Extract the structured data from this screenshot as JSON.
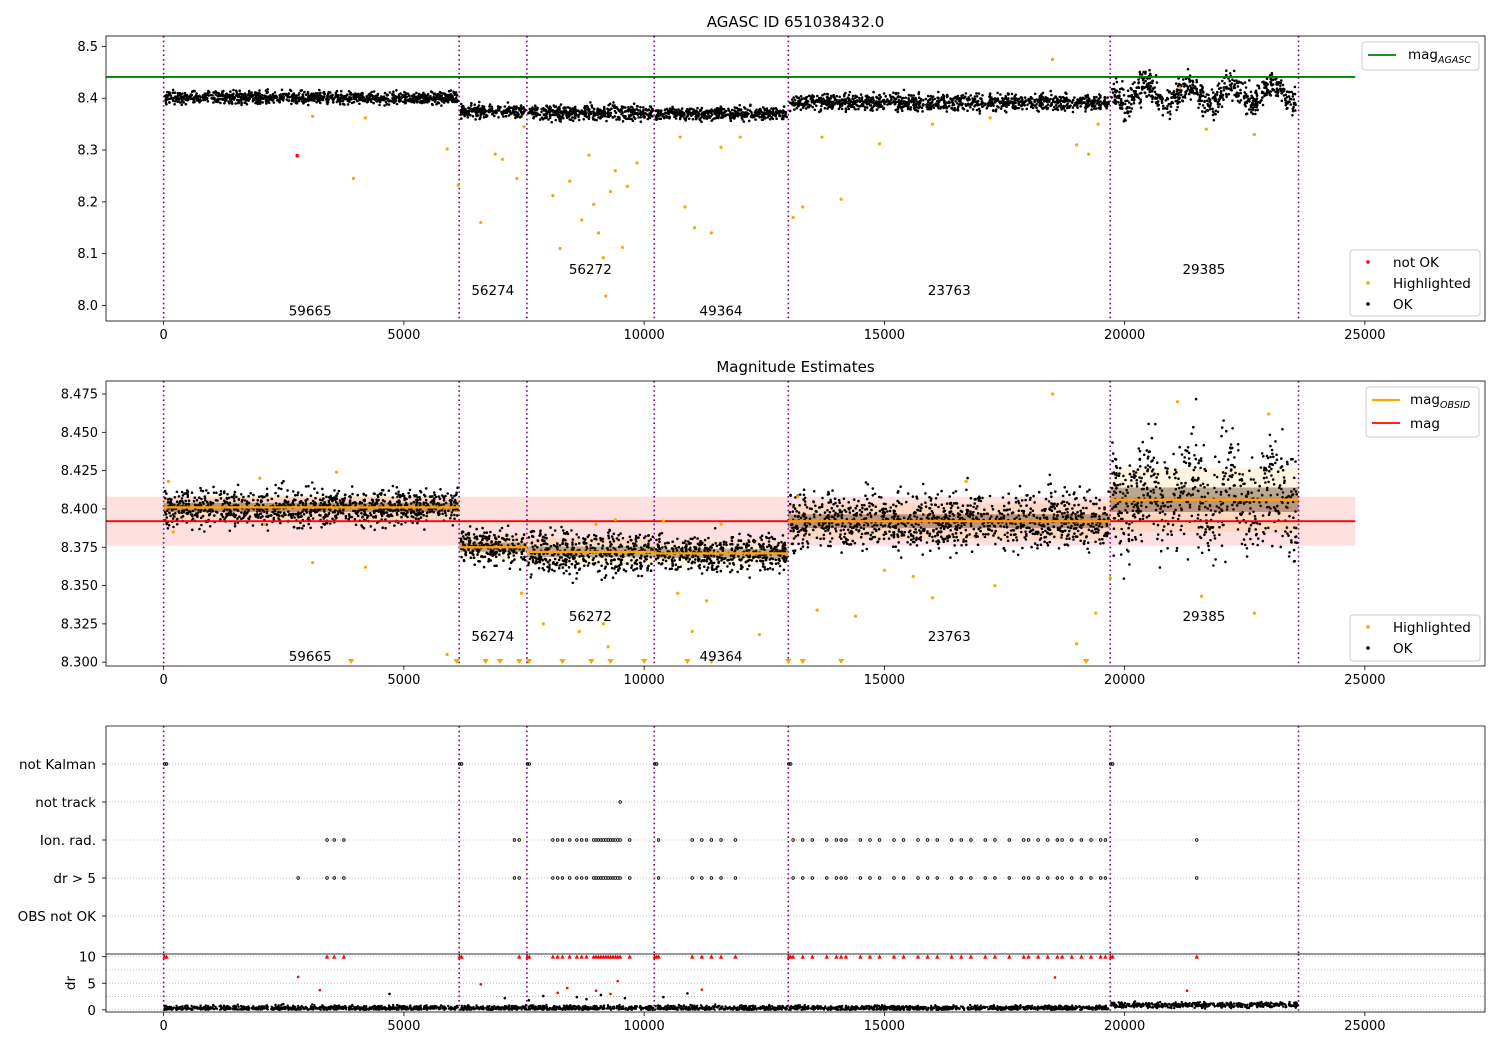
{
  "chart_data": [
    {
      "type": "scatter",
      "title": "AGASC ID 651038432.0",
      "xlabel": "",
      "ylabel": "",
      "xlim": [
        -1200,
        27500
      ],
      "ylim": [
        7.97,
        8.52
      ],
      "xticks": [
        0,
        5000,
        10000,
        15000,
        20000,
        25000
      ],
      "yticks": [
        8.0,
        8.1,
        8.2,
        8.3,
        8.4,
        8.5
      ],
      "ytick_labels": [
        "8.0",
        "8.1",
        "8.2",
        "8.3",
        "8.4",
        "8.5"
      ],
      "grid": false,
      "reference_lines": [
        {
          "name": "mag_AGASC",
          "label_main": "mag",
          "label_sub": "AGASC",
          "y": 8.441,
          "x_start": -1200,
          "x_end": 24800,
          "color": "#008000"
        }
      ],
      "obsid_boundaries": [
        0,
        6150,
        7560,
        10210,
        13000,
        19700,
        23620
      ],
      "segments": [
        {
          "obsid": "59665",
          "x_start": 0,
          "x_end": 6150,
          "level": 8.401,
          "spread": 0.006,
          "label_x": 3050,
          "label_y": 7.99
        },
        {
          "obsid": "56274",
          "x_start": 6150,
          "x_end": 7560,
          "level": 8.375,
          "spread": 0.006,
          "label_x": 6850,
          "label_y": 8.03
        },
        {
          "obsid": "56272",
          "x_start": 7560,
          "x_end": 10210,
          "level": 8.372,
          "spread": 0.007,
          "label_x": 8880,
          "label_y": 8.07
        },
        {
          "obsid": "49364",
          "x_start": 10210,
          "x_end": 13000,
          "level": 8.37,
          "spread": 0.006,
          "label_x": 11600,
          "label_y": 7.99
        },
        {
          "obsid": "23763",
          "x_start": 13000,
          "x_end": 19700,
          "level": 8.392,
          "spread": 0.008,
          "label_x": 16350,
          "label_y": 8.03
        },
        {
          "obsid": "29385",
          "x_start": 19700,
          "x_end": 23620,
          "level": 8.408,
          "spread": 0.014,
          "label_x": 21650,
          "label_y": 8.07
        }
      ],
      "not_ok_points": [
        {
          "x": 2780,
          "y": 8.289
        }
      ],
      "highlighted_points": [
        {
          "x": 3100,
          "y": 8.365
        },
        {
          "x": 3950,
          "y": 8.245
        },
        {
          "x": 4200,
          "y": 8.362
        },
        {
          "x": 5900,
          "y": 8.302
        },
        {
          "x": 6130,
          "y": 8.232
        },
        {
          "x": 6600,
          "y": 8.16
        },
        {
          "x": 6900,
          "y": 8.292
        },
        {
          "x": 7050,
          "y": 8.282
        },
        {
          "x": 7350,
          "y": 8.245
        },
        {
          "x": 7500,
          "y": 8.345
        },
        {
          "x": 8100,
          "y": 8.212
        },
        {
          "x": 8250,
          "y": 8.11
        },
        {
          "x": 8450,
          "y": 8.24
        },
        {
          "x": 8700,
          "y": 8.165
        },
        {
          "x": 8850,
          "y": 8.29
        },
        {
          "x": 8950,
          "y": 8.195
        },
        {
          "x": 9050,
          "y": 8.14
        },
        {
          "x": 9150,
          "y": 8.092
        },
        {
          "x": 9200,
          "y": 8.018
        },
        {
          "x": 9300,
          "y": 8.22
        },
        {
          "x": 9400,
          "y": 8.26
        },
        {
          "x": 9550,
          "y": 8.112
        },
        {
          "x": 9650,
          "y": 8.23
        },
        {
          "x": 9850,
          "y": 8.275
        },
        {
          "x": 10750,
          "y": 8.325
        },
        {
          "x": 10850,
          "y": 8.19
        },
        {
          "x": 11050,
          "y": 8.15
        },
        {
          "x": 11400,
          "y": 8.14
        },
        {
          "x": 11600,
          "y": 8.305
        },
        {
          "x": 12000,
          "y": 8.325
        },
        {
          "x": 13100,
          "y": 8.17
        },
        {
          "x": 13300,
          "y": 8.19
        },
        {
          "x": 13700,
          "y": 8.325
        },
        {
          "x": 14100,
          "y": 8.205
        },
        {
          "x": 14900,
          "y": 8.312
        },
        {
          "x": 16000,
          "y": 8.35
        },
        {
          "x": 17200,
          "y": 8.362
        },
        {
          "x": 18500,
          "y": 8.475
        },
        {
          "x": 19000,
          "y": 8.31
        },
        {
          "x": 19250,
          "y": 8.292
        },
        {
          "x": 19450,
          "y": 8.35
        },
        {
          "x": 21150,
          "y": 8.42
        },
        {
          "x": 21700,
          "y": 8.34
        },
        {
          "x": 22700,
          "y": 8.33
        }
      ],
      "legend": [
        {
          "label": "not OK",
          "color": "#ff0000",
          "marker": "dot"
        },
        {
          "label": "Highlighted",
          "color": "#ffa500",
          "marker": "dot"
        },
        {
          "label": "OK",
          "color": "#000000",
          "marker": "dot"
        }
      ],
      "legend_placement": "lower-right",
      "line_legend_placement": "upper-right"
    },
    {
      "type": "scatter",
      "title": "Magnitude Estimates",
      "xlabel": "",
      "ylabel": "",
      "xlim": [
        -1200,
        27500
      ],
      "ylim": [
        8.2975,
        8.4835
      ],
      "xticks": [
        0,
        5000,
        10000,
        15000,
        20000,
        25000
      ],
      "yticks": [
        8.3,
        8.325,
        8.35,
        8.375,
        8.4,
        8.425,
        8.45,
        8.475
      ],
      "ytick_labels": [
        "8.300",
        "8.325",
        "8.350",
        "8.375",
        "8.400",
        "8.425",
        "8.450",
        "8.475"
      ],
      "grid": false,
      "mag": {
        "name": "mag",
        "y": 8.392,
        "band": [
          8.376,
          8.408
        ],
        "x_start": -1200,
        "x_end": 24800,
        "color": "#ff0000"
      },
      "mag_obsid": {
        "name": "mag_OBSID",
        "label_main": "mag",
        "label_sub": "OBSID",
        "color": "#ffa500",
        "values": [
          8.401,
          8.375,
          8.372,
          8.371,
          8.392,
          8.406
        ]
      },
      "obsid_boundaries": [
        0,
        6150,
        7560,
        10210,
        13000,
        19700,
        23620
      ],
      "segment_labels": [
        {
          "text": "59665",
          "x": 3050,
          "y": 8.304
        },
        {
          "text": "56274",
          "x": 6850,
          "y": 8.317
        },
        {
          "text": "56272",
          "x": 8880,
          "y": 8.33
        },
        {
          "text": "49364",
          "x": 11600,
          "y": 8.304
        },
        {
          "text": "23763",
          "x": 16350,
          "y": 8.317
        },
        {
          "text": "29385",
          "x": 21650,
          "y": 8.33
        }
      ],
      "highlighted_points": [
        {
          "x": 100,
          "y": 8.418
        },
        {
          "x": 200,
          "y": 8.385
        },
        {
          "x": 2000,
          "y": 8.42
        },
        {
          "x": 2100,
          "y": 8.39
        },
        {
          "x": 3100,
          "y": 8.365
        },
        {
          "x": 3600,
          "y": 8.424
        },
        {
          "x": 4200,
          "y": 8.362
        },
        {
          "x": 5900,
          "y": 8.305
        },
        {
          "x": 7450,
          "y": 8.345
        },
        {
          "x": 7900,
          "y": 8.325
        },
        {
          "x": 8650,
          "y": 8.32
        },
        {
          "x": 9000,
          "y": 8.39
        },
        {
          "x": 9150,
          "y": 8.325
        },
        {
          "x": 9250,
          "y": 8.31
        },
        {
          "x": 9400,
          "y": 8.393
        },
        {
          "x": 10400,
          "y": 8.392
        },
        {
          "x": 10700,
          "y": 8.345
        },
        {
          "x": 11000,
          "y": 8.32
        },
        {
          "x": 11300,
          "y": 8.34
        },
        {
          "x": 11600,
          "y": 8.39
        },
        {
          "x": 12400,
          "y": 8.318
        },
        {
          "x": 13200,
          "y": 8.408
        },
        {
          "x": 13600,
          "y": 8.334
        },
        {
          "x": 14400,
          "y": 8.33
        },
        {
          "x": 15000,
          "y": 8.36
        },
        {
          "x": 15600,
          "y": 8.356
        },
        {
          "x": 16000,
          "y": 8.342
        },
        {
          "x": 16700,
          "y": 8.418
        },
        {
          "x": 17300,
          "y": 8.35
        },
        {
          "x": 18500,
          "y": 8.475
        },
        {
          "x": 19000,
          "y": 8.312
        },
        {
          "x": 19400,
          "y": 8.332
        },
        {
          "x": 19700,
          "y": 8.355
        },
        {
          "x": 21100,
          "y": 8.47
        },
        {
          "x": 21600,
          "y": 8.343
        },
        {
          "x": 22700,
          "y": 8.332
        },
        {
          "x": 23000,
          "y": 8.462
        }
      ],
      "off_scale_markers": [
        3900,
        6100,
        6700,
        7000,
        7400,
        7600,
        8300,
        8900,
        9300,
        10000,
        10900,
        11400,
        13000,
        13300,
        14100,
        19200
      ],
      "legend": [
        {
          "label": "Highlighted",
          "color": "#ffa500",
          "marker": "dot"
        },
        {
          "label": "OK",
          "color": "#000000",
          "marker": "dot"
        }
      ],
      "legend_placement": "lower-right",
      "line_legend_placement": "upper-right"
    },
    {
      "type": "scatter",
      "title": "",
      "xlabel": "",
      "ylabel": "",
      "xlim": [
        -1200,
        27500
      ],
      "categories": [
        "not Kalman",
        "not track",
        "Ion. rad.",
        "dr > 5",
        "OBS not OK"
      ],
      "grid": "horizontal-dotted",
      "obsid_boundaries": [
        0,
        6150,
        7560,
        10210,
        13000,
        19700,
        23620
      ],
      "flags": {
        "not Kalman": [
          20,
          60,
          6160,
          6200,
          7570,
          7610,
          10220,
          10260,
          13010,
          13050,
          19710,
          19750
        ],
        "not track": [
          9500
        ],
        "Ion. rad.": [
          3400,
          3550,
          3750,
          7300,
          7400,
          8100,
          8200,
          8300,
          8450,
          8600,
          8700,
          8800,
          8950,
          9000,
          9050,
          9100,
          9150,
          9200,
          9250,
          9300,
          9350,
          9400,
          9450,
          9500,
          9700,
          10300,
          11000,
          11200,
          11400,
          11600,
          11900,
          13100,
          13300,
          13500,
          13800,
          14000,
          14100,
          14200,
          14500,
          14700,
          14900,
          15200,
          15400,
          15700,
          15900,
          16100,
          16400,
          16600,
          16800,
          17100,
          17300,
          17600,
          17900,
          18000,
          18200,
          18400,
          18600,
          18700,
          18900,
          19100,
          19300,
          19500,
          19600,
          21500
        ],
        "dr > 5": [
          2800,
          3400,
          3550,
          3750,
          7300,
          7400,
          8100,
          8200,
          8300,
          8450,
          8600,
          8700,
          8800,
          8950,
          9000,
          9050,
          9100,
          9150,
          9200,
          9250,
          9300,
          9350,
          9400,
          9450,
          9500,
          9700,
          10300,
          11000,
          11200,
          11400,
          11600,
          11900,
          13100,
          13300,
          13500,
          13800,
          14000,
          14100,
          14200,
          14500,
          14700,
          14900,
          15200,
          15400,
          15700,
          15900,
          16100,
          16400,
          16600,
          16800,
          17100,
          17300,
          17600,
          17900,
          18000,
          18200,
          18400,
          18600,
          18700,
          18900,
          19100,
          19300,
          19500,
          19600,
          21500
        ],
        "OBS not OK": []
      }
    },
    {
      "type": "scatter",
      "title": "",
      "xlabel": "",
      "ylabel": "dr",
      "xlim": [
        -1200,
        27500
      ],
      "ylim": [
        -0.4,
        10.5
      ],
      "xticks": [
        0,
        5000,
        10000,
        15000,
        20000,
        25000
      ],
      "yticks": [
        0,
        5,
        10
      ],
      "grid": "horizontal-dotted",
      "obsid_boundaries": [
        0,
        6150,
        7560,
        10210,
        13000,
        19700,
        23620
      ],
      "clipped_at": 10,
      "outliers": [
        {
          "x": 2800,
          "y": 6.2,
          "color": "#ff0000"
        },
        {
          "x": 3250,
          "y": 3.7,
          "color": "#ff0000"
        },
        {
          "x": 4700,
          "y": 3.0,
          "color": "#000000"
        },
        {
          "x": 6600,
          "y": 4.8,
          "color": "#ff0000"
        },
        {
          "x": 7100,
          "y": 2.2,
          "color": "#000000"
        },
        {
          "x": 7600,
          "y": 1.8,
          "color": "#000000"
        },
        {
          "x": 7900,
          "y": 2.6,
          "color": "#000000"
        },
        {
          "x": 8200,
          "y": 3.2,
          "color": "#ff0000"
        },
        {
          "x": 8400,
          "y": 4.1,
          "color": "#ff0000"
        },
        {
          "x": 8600,
          "y": 2.4,
          "color": "#000000"
        },
        {
          "x": 8800,
          "y": 2.0,
          "color": "#000000"
        },
        {
          "x": 9000,
          "y": 3.6,
          "color": "#ff0000"
        },
        {
          "x": 9100,
          "y": 2.8,
          "color": "#000000"
        },
        {
          "x": 9300,
          "y": 3.0,
          "color": "#ff0000"
        },
        {
          "x": 9450,
          "y": 5.4,
          "color": "#ff0000"
        },
        {
          "x": 9600,
          "y": 2.2,
          "color": "#000000"
        },
        {
          "x": 10400,
          "y": 2.4,
          "color": "#000000"
        },
        {
          "x": 10900,
          "y": 3.1,
          "color": "#000000"
        },
        {
          "x": 11200,
          "y": 3.8,
          "color": "#ff0000"
        },
        {
          "x": 18550,
          "y": 6.1,
          "color": "#ff0000"
        },
        {
          "x": 21300,
          "y": 3.6,
          "color": "#ff0000"
        }
      ],
      "clipped_points": [
        20,
        60,
        6160,
        6200,
        7400,
        7570,
        7610,
        8100,
        8200,
        8300,
        8450,
        8600,
        8700,
        8800,
        8950,
        9000,
        9050,
        9100,
        9150,
        9200,
        9250,
        9300,
        9350,
        9400,
        9450,
        9500,
        9700,
        10220,
        10260,
        10300,
        11000,
        11200,
        11400,
        11600,
        11900,
        13010,
        13050,
        13100,
        13300,
        13500,
        13800,
        14000,
        14100,
        14200,
        14500,
        14700,
        14900,
        15200,
        15400,
        15700,
        15900,
        16100,
        16400,
        16600,
        16800,
        17100,
        17300,
        17600,
        17900,
        18000,
        18200,
        18400,
        18600,
        18700,
        18900,
        19100,
        19300,
        19500,
        19600,
        19710,
        19750,
        21500,
        3400,
        3550,
        3750
      ]
    }
  ]
}
